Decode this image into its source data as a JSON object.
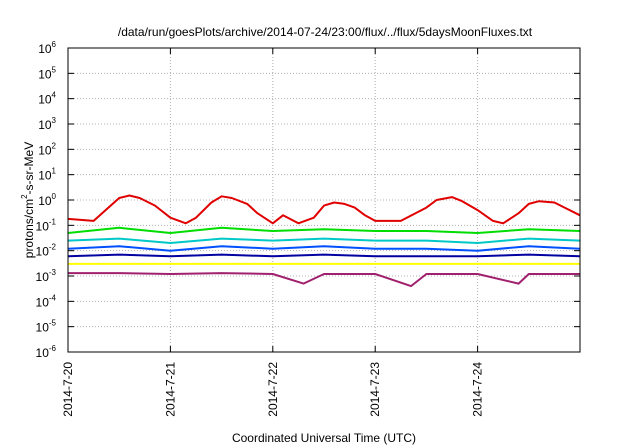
{
  "chart_data": {
    "type": "line",
    "title": "/data/run/goesPlots/archive/2014-07-24/23:00/flux/../flux/5daysMoonFluxes.txt",
    "xlabel": "Coordinated Universal Time (UTC)",
    "ylabel": {
      "pre": "protons/cm",
      "sup": "2",
      "post": "-s-sr-MeV"
    },
    "xlim": [
      0,
      5
    ],
    "ylim_exp": [
      -6,
      6
    ],
    "yscale": "log",
    "grid": true,
    "x_ticks": [
      {
        "x": 0,
        "label": "2014-7-20"
      },
      {
        "x": 1,
        "label": "2014-7-21"
      },
      {
        "x": 2,
        "label": "2014-7-22"
      },
      {
        "x": 3,
        "label": "2014-7-23"
      },
      {
        "x": 4,
        "label": "2014-7-24"
      }
    ],
    "y_ticks": [
      {
        "exp": -6,
        "base": "10",
        "sup": "-6"
      },
      {
        "exp": -5,
        "base": "10",
        "sup": "-5"
      },
      {
        "exp": -4,
        "base": "10",
        "sup": "-4"
      },
      {
        "exp": -3,
        "base": "10",
        "sup": "-3"
      },
      {
        "exp": -2,
        "base": "10",
        "sup": "-2"
      },
      {
        "exp": -1,
        "base": "10",
        "sup": "-1"
      },
      {
        "exp": 0,
        "base": "10",
        "sup": "0"
      },
      {
        "exp": 1,
        "base": "10",
        "sup": "1"
      },
      {
        "exp": 2,
        "base": "10",
        "sup": "2"
      },
      {
        "exp": 3,
        "base": "10",
        "sup": "3"
      },
      {
        "exp": 4,
        "base": "10",
        "sup": "4"
      },
      {
        "exp": 5,
        "base": "10",
        "sup": "5"
      },
      {
        "exp": 6,
        "base": "10",
        "sup": "6"
      }
    ],
    "series": [
      {
        "color": "#e00000",
        "x": [
          0,
          0.25,
          0.5,
          0.6,
          0.7,
          0.85,
          1.0,
          1.15,
          1.25,
          1.4,
          1.5,
          1.6,
          1.75,
          1.85,
          2.0,
          2.1,
          2.25,
          2.4,
          2.5,
          2.6,
          2.7,
          2.8,
          2.9,
          3.0,
          3.25,
          3.5,
          3.6,
          3.75,
          3.85,
          4.0,
          4.15,
          4.25,
          4.4,
          4.5,
          4.6,
          4.75,
          4.85,
          5.0
        ],
        "y": [
          0.18,
          0.15,
          1.2,
          1.5,
          1.2,
          0.6,
          0.2,
          0.12,
          0.2,
          0.8,
          1.4,
          1.2,
          0.7,
          0.3,
          0.12,
          0.25,
          0.12,
          0.2,
          0.6,
          0.8,
          0.7,
          0.5,
          0.25,
          0.15,
          0.15,
          0.5,
          1.0,
          1.3,
          0.9,
          0.4,
          0.15,
          0.12,
          0.3,
          0.7,
          0.9,
          0.8,
          0.5,
          0.25
        ]
      },
      {
        "color": "#00dd00",
        "x": [
          0,
          0.5,
          1.0,
          1.5,
          2.0,
          2.5,
          3.0,
          3.5,
          4.0,
          4.5,
          5.0
        ],
        "y": [
          0.05,
          0.08,
          0.05,
          0.08,
          0.06,
          0.07,
          0.06,
          0.06,
          0.05,
          0.07,
          0.06
        ]
      },
      {
        "color": "#00c8c8",
        "x": [
          0,
          0.5,
          1.0,
          1.5,
          2.0,
          2.5,
          3.0,
          3.5,
          4.0,
          4.5,
          5.0
        ],
        "y": [
          0.025,
          0.03,
          0.02,
          0.03,
          0.025,
          0.03,
          0.025,
          0.025,
          0.02,
          0.03,
          0.025
        ]
      },
      {
        "color": "#0050ff",
        "x": [
          0,
          0.5,
          1.0,
          1.5,
          2.0,
          2.5,
          3.0,
          3.5,
          4.0,
          4.5,
          5.0
        ],
        "y": [
          0.012,
          0.015,
          0.01,
          0.015,
          0.012,
          0.015,
          0.012,
          0.012,
          0.01,
          0.015,
          0.012
        ]
      },
      {
        "color": "#0000a0",
        "x": [
          0,
          0.5,
          1.0,
          1.5,
          2.0,
          2.5,
          3.0,
          3.5,
          4.0,
          4.5,
          5.0
        ],
        "y": [
          0.006,
          0.007,
          0.006,
          0.007,
          0.006,
          0.007,
          0.006,
          0.006,
          0.006,
          0.007,
          0.006
        ]
      },
      {
        "color": "#ffff00",
        "x": [
          0,
          0.5,
          1.0,
          1.5,
          2.0,
          2.5,
          3.0,
          3.5,
          4.0,
          4.5,
          5.0
        ],
        "y": [
          0.003,
          0.003,
          0.003,
          0.003,
          0.003,
          0.003,
          0.003,
          0.003,
          0.003,
          0.003,
          0.003
        ]
      },
      {
        "color": "#a0206e",
        "x": [
          0,
          0.5,
          1.0,
          1.5,
          2.0,
          2.3,
          2.5,
          3.0,
          3.35,
          3.5,
          4.0,
          4.4,
          4.5,
          5.0
        ],
        "y": [
          0.0013,
          0.0013,
          0.0012,
          0.0013,
          0.0012,
          0.0005,
          0.0012,
          0.0012,
          0.0004,
          0.0012,
          0.0012,
          0.0005,
          0.0012,
          0.0012
        ]
      }
    ]
  }
}
